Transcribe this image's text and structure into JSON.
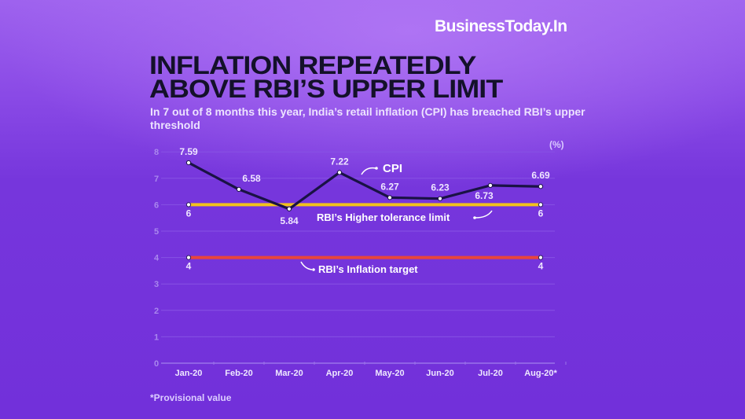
{
  "header": {
    "brand": "BusinessToday.In",
    "title_line1": "INFLATION REPEATEDLY",
    "title_line2": "ABOVE RBI’S UPPER LIMIT",
    "subtitle": "In 7 out of 8 months this year, India’s retail inflation (CPI) has breached RBI’s upper threshold"
  },
  "unit_label": "(%)",
  "footnote": "*Provisional value",
  "colors": {
    "background": "#7636dc",
    "cpi_line": "#1a1245",
    "upper_limit_line": "#f2c21b",
    "target_line": "#e8453c",
    "title_text": "#14112a"
  },
  "annotations": {
    "cpi": "CPI",
    "upper_limit": "RBI’s Higher tolerance limit",
    "target": "RBI’s Inflation target"
  },
  "chart_data": {
    "type": "line",
    "title": "INFLATION REPEATEDLY ABOVE RBI’S UPPER LIMIT",
    "subtitle": "In 7 out of 8 months this year, India’s retail inflation (CPI) has breached RBI’s upper threshold",
    "xlabel": "",
    "ylabel": "(%)",
    "categories": [
      "Jan-20",
      "Feb-20",
      "Mar-20",
      "Apr-20",
      "May-20",
      "Jun-20",
      "Jul-20",
      "Aug-20*"
    ],
    "series": [
      {
        "name": "CPI",
        "values": [
          7.59,
          6.58,
          5.84,
          7.22,
          6.27,
          6.23,
          6.73,
          6.69
        ],
        "color": "#1a1245"
      },
      {
        "name": "RBI’s Higher tolerance limit",
        "values": [
          6,
          6,
          6,
          6,
          6,
          6,
          6,
          6
        ],
        "color": "#f2c21b",
        "endpoint_labels": [
          "6",
          "6"
        ]
      },
      {
        "name": "RBI’s Inflation target",
        "values": [
          4,
          4,
          4,
          4,
          4,
          4,
          4,
          4
        ],
        "color": "#e8453c",
        "endpoint_labels": [
          "4",
          "4"
        ]
      }
    ],
    "data_labels": [
      "7.59",
      "6.58",
      "5.84",
      "7.22",
      "6.27",
      "6.23",
      "6.73",
      "6.69"
    ],
    "yticks": [
      0,
      1,
      2,
      3,
      4,
      5,
      6,
      7,
      8
    ],
    "ylim": [
      0,
      8
    ],
    "grid": true,
    "legend": "inline annotations",
    "footnote": "*Provisional value"
  }
}
